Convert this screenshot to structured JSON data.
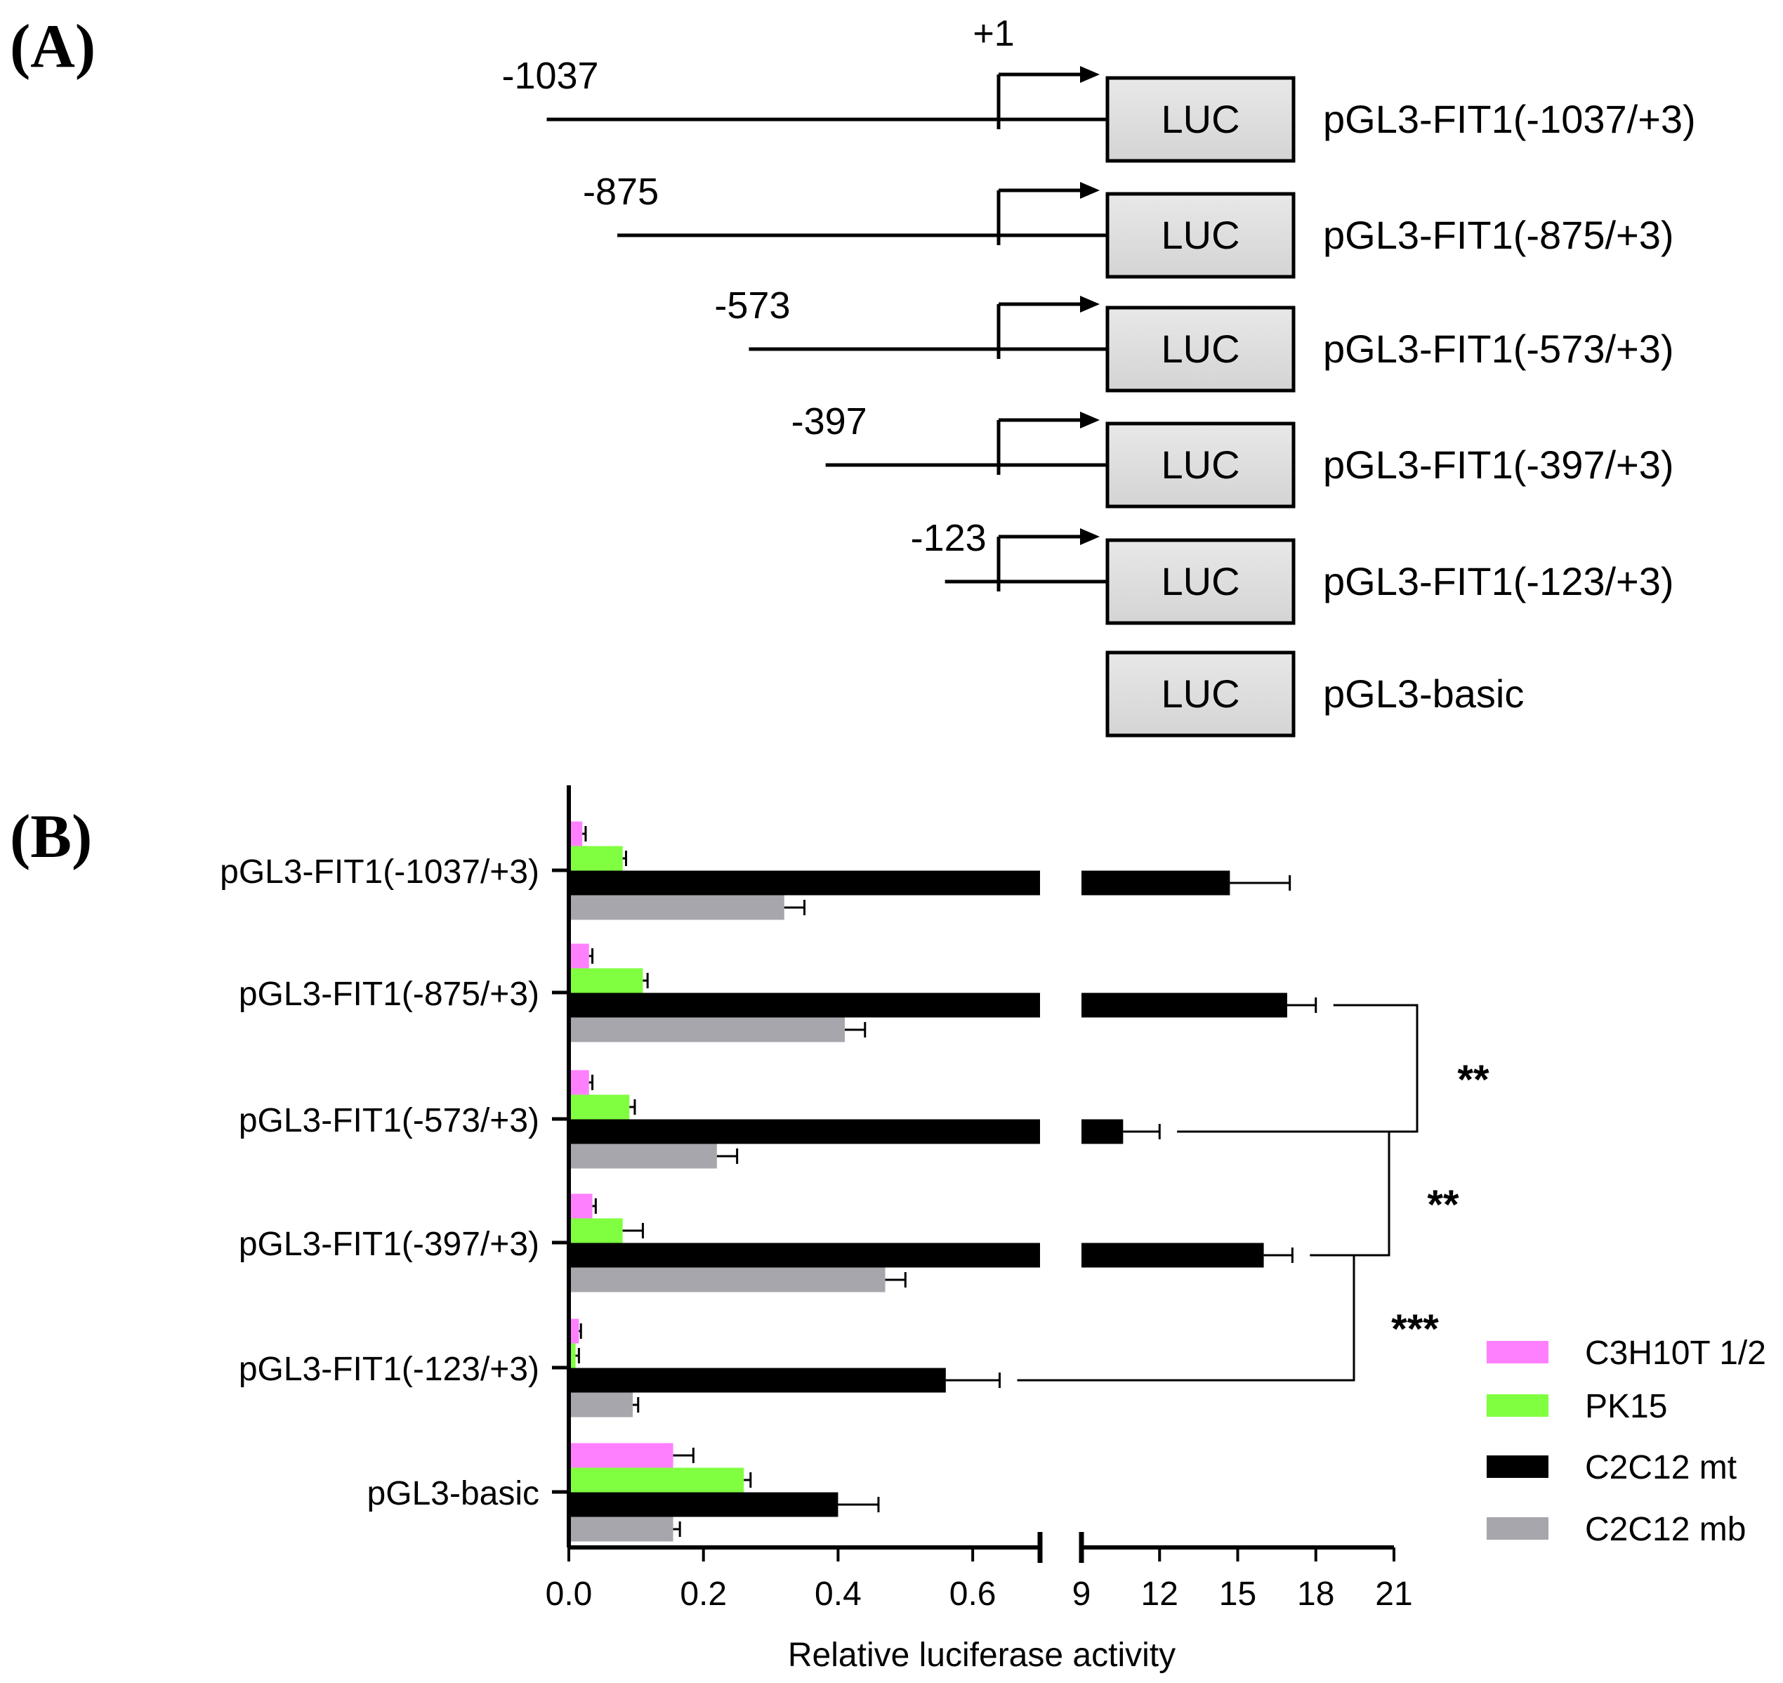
{
  "panel_a": {
    "label": "(A)",
    "tss_label": "+1",
    "box_label": "LUC",
    "constructs": [
      {
        "start_label": "-1037",
        "start_bp": -1037,
        "name": "pGL3-FIT1(-1037/+3)"
      },
      {
        "start_label": "-875",
        "start_bp": -875,
        "name": "pGL3-FIT1(-875/+3)"
      },
      {
        "start_label": "-573",
        "start_bp": -573,
        "name": "pGL3-FIT1(-573/+3)"
      },
      {
        "start_label": "-397",
        "start_bp": -397,
        "name": "pGL3-FIT1(-397/+3)"
      },
      {
        "start_label": "-123",
        "start_bp": -123,
        "name": "pGL3-FIT1(-123/+3)"
      },
      {
        "start_label": "",
        "start_bp": null,
        "name": "pGL3-basic"
      }
    ]
  },
  "panel_b": {
    "label": "(B)"
  },
  "chart_data": {
    "type": "bar",
    "orientation": "horizontal",
    "title": "",
    "xlabel": "Relative luciferase activity",
    "ylabel": "",
    "axis_break": true,
    "x_segments": [
      {
        "range": [
          0,
          0.7
        ],
        "ticks": [
          0.0,
          0.2,
          0.4,
          0.6
        ],
        "tick_labels": [
          "0.0",
          "0.2",
          "0.4",
          "0.6"
        ]
      },
      {
        "range": [
          9,
          21
        ],
        "ticks": [
          9,
          12,
          15,
          18,
          21
        ],
        "tick_labels": [
          "9",
          "12",
          "15",
          "18",
          "21"
        ]
      }
    ],
    "categories": [
      "pGL3-FIT1(-1037/+3)",
      "pGL3-FIT1(-875/+3)",
      "pGL3-FIT1(-573/+3)",
      "pGL3-FIT1(-397/+3)",
      "pGL3-FIT1(-123/+3)",
      "pGL3-basic"
    ],
    "series": [
      {
        "name": "C3H10T 1/2",
        "color": "#ff80ff",
        "values": [
          0.02,
          0.03,
          0.03,
          0.035,
          0.015,
          0.155
        ],
        "errors": [
          0.005,
          0.005,
          0.005,
          0.005,
          0.003,
          0.03
        ]
      },
      {
        "name": "PK15",
        "color": "#80ff40",
        "values": [
          0.08,
          0.11,
          0.09,
          0.08,
          0.01,
          0.26
        ],
        "errors": [
          0.005,
          0.007,
          0.008,
          0.03,
          0.005,
          0.01
        ]
      },
      {
        "name": "C2C12 mt",
        "color": "#000000",
        "values": [
          14.7,
          16.9,
          10.6,
          16.0,
          0.56,
          0.4
        ],
        "errors": [
          2.3,
          1.1,
          1.4,
          1.1,
          0.08,
          0.06
        ]
      },
      {
        "name": "C2C12 mb",
        "color": "#a6a6ac",
        "values": [
          0.32,
          0.41,
          0.22,
          0.47,
          0.095,
          0.155
        ],
        "errors": [
          0.03,
          0.03,
          0.03,
          0.03,
          0.008,
          0.01
        ]
      }
    ],
    "significance": [
      {
        "between": [
          "pGL3-FIT1(-875/+3)",
          "pGL3-FIT1(-573/+3)"
        ],
        "label": "**"
      },
      {
        "between": [
          "pGL3-FIT1(-573/+3)",
          "pGL3-FIT1(-397/+3)"
        ],
        "label": "**"
      },
      {
        "between": [
          "pGL3-FIT1(-397/+3)",
          "pGL3-FIT1(-123/+3)"
        ],
        "label": "***"
      }
    ],
    "legend": {
      "position": "bottom-right",
      "entries": [
        "C3H10T 1/2",
        "PK15",
        "C2C12 mt",
        "C2C12 mb"
      ]
    }
  }
}
